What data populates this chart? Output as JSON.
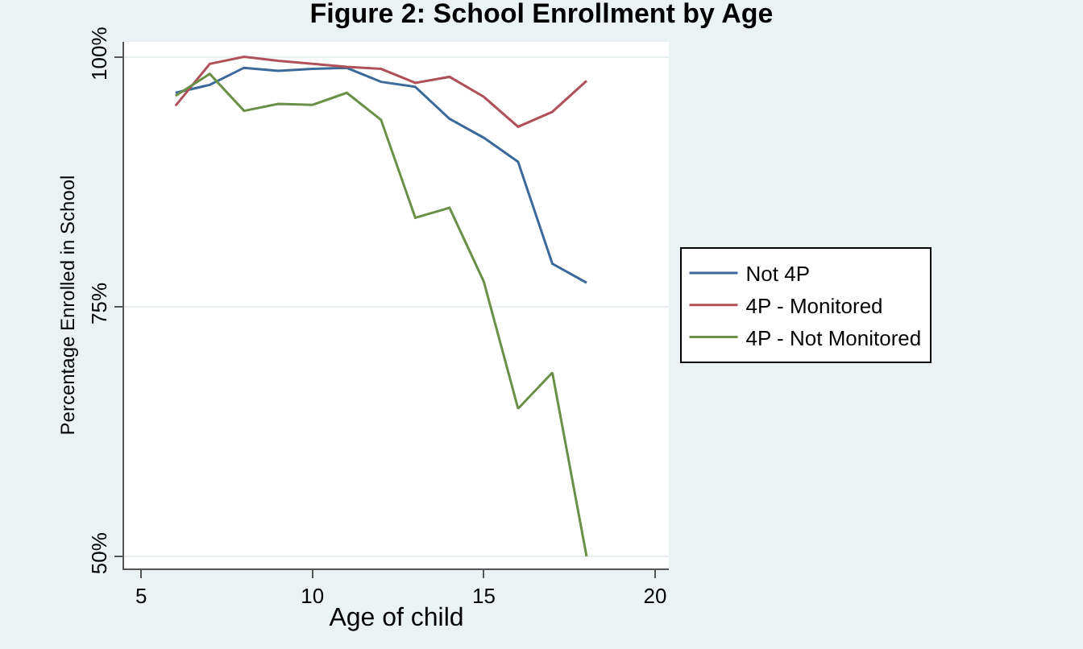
{
  "chart_data": {
    "type": "line",
    "title": "Figure 2: School Enrollment by Age",
    "xlabel": "Age of child",
    "ylabel": "Percentage Enrolled in School",
    "x": [
      6,
      7,
      8,
      9,
      10,
      11,
      12,
      13,
      14,
      15,
      16,
      17,
      18
    ],
    "series": [
      {
        "name": "Not 4P",
        "color": "#3b6a9a",
        "values": [
          96.4,
          97.2,
          98.9,
          98.6,
          98.8,
          98.9,
          97.5,
          97.0,
          93.8,
          91.9,
          89.5,
          79.3,
          77.4
        ]
      },
      {
        "name": "4P - Monitored",
        "color": "#b0505a",
        "values": [
          95.1,
          99.3,
          100.0,
          99.6,
          99.3,
          99.0,
          98.8,
          97.4,
          98.0,
          96.0,
          93.0,
          94.5,
          97.6
        ]
      },
      {
        "name": "4P - Not Monitored",
        "color": "#6a8f47",
        "values": [
          96.1,
          98.3,
          94.6,
          95.3,
          95.2,
          96.4,
          93.7,
          83.9,
          84.9,
          77.5,
          64.8,
          68.4,
          50.0
        ]
      }
    ],
    "xlim": [
      4.5,
      20.4
    ],
    "ylim": [
      48.8,
      101.5
    ],
    "xticks": [
      5,
      10,
      15,
      20
    ],
    "yticks": [
      {
        "value": 100,
        "label": "100%"
      },
      {
        "value": 75,
        "label": "75%"
      },
      {
        "value": 50,
        "label": "50%"
      }
    ],
    "grid": "y",
    "legend": "right",
    "marker": "none",
    "line_style": "solid"
  }
}
